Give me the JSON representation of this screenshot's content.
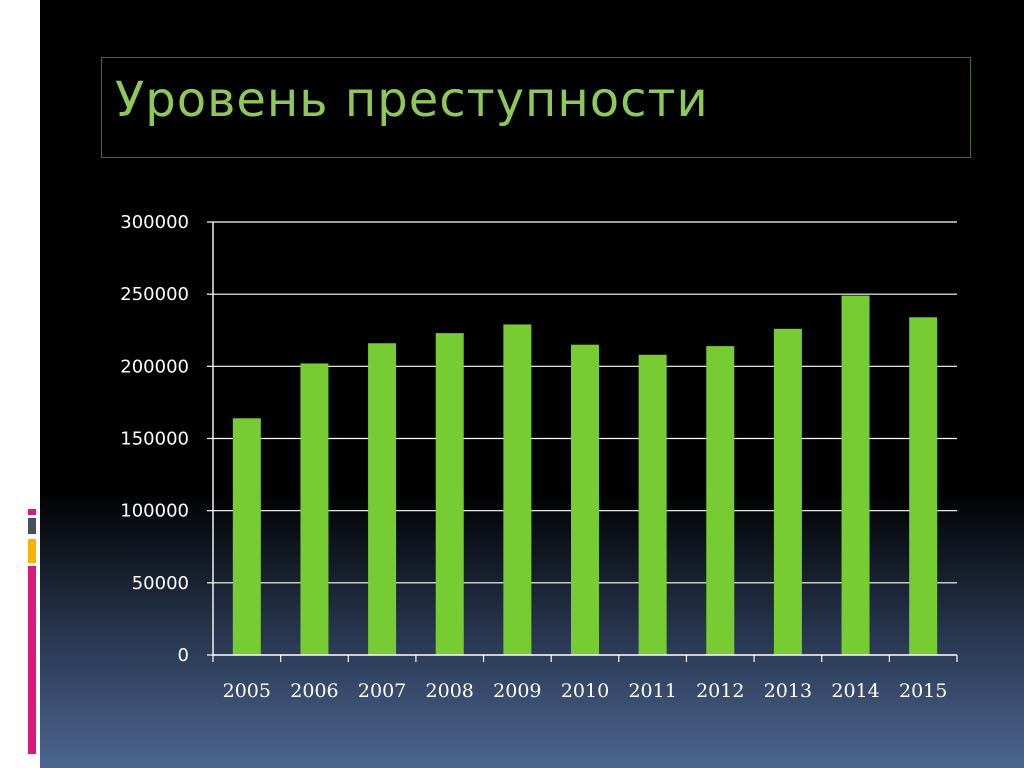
{
  "title": "Уровень преступности",
  "colors": {
    "bar": "#77cc33",
    "title": "#8fc85a",
    "grid": "#ffffff",
    "axis_text": "#ffffff",
    "accent_magenta": "#d6197a",
    "accent_gray": "#4a4f5e",
    "accent_gold": "#f4b400"
  },
  "chart_data": {
    "type": "bar",
    "title": "",
    "xlabel": "",
    "ylabel": "",
    "categories": [
      "2005",
      "2006",
      "2007",
      "2008",
      "2009",
      "2010",
      "2011",
      "2012",
      "2013",
      "2014",
      "2015"
    ],
    "values": [
      164000,
      202000,
      216000,
      223000,
      229000,
      215000,
      208000,
      214000,
      226000,
      249000,
      234000
    ],
    "ylim": [
      0,
      300000
    ],
    "yticks": [
      "0",
      "50000",
      "100000",
      "150000",
      "200000",
      "250000",
      "300000"
    ],
    "grid": true,
    "legend": "none"
  }
}
